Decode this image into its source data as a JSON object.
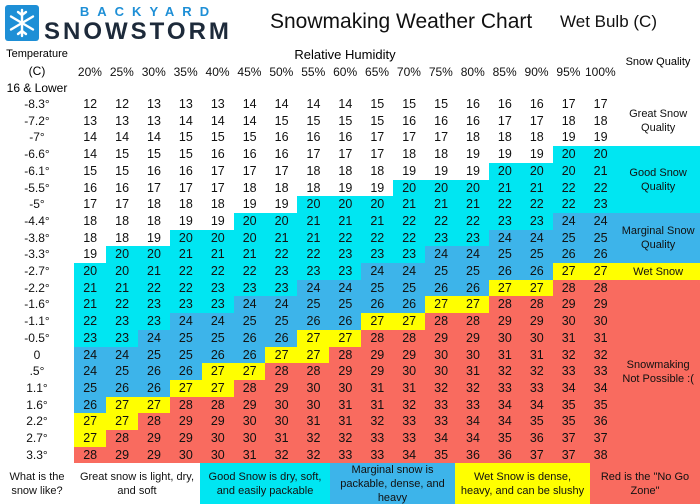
{
  "header": {
    "brand_top": "BACKYARD",
    "brand_bottom": "SNOWSTORM",
    "title": "Snowmaking Weather Chart",
    "unit_label": "Wet Bulb (C)"
  },
  "table": {
    "temperature_label": "Temperature",
    "temperature_unit": "(C)",
    "column_group_label": "Relative Humidity",
    "quality_label": "Snow Quality",
    "first_row_label": "16 & Lower",
    "columns": [
      "20%",
      "25%",
      "30%",
      "35%",
      "40%",
      "45%",
      "50%",
      "55%",
      "60%",
      "65%",
      "70%",
      "75%",
      "80%",
      "85%",
      "90%",
      "95%",
      "100%"
    ],
    "rows": [
      {
        "temperature": "-8.3°",
        "values": [
          12,
          12,
          13,
          13,
          13,
          14,
          14,
          14,
          14,
          15,
          15,
          15,
          16,
          16,
          16,
          17,
          17
        ]
      },
      {
        "temperature": "-7.2°",
        "values": [
          13,
          13,
          13,
          14,
          14,
          14,
          15,
          15,
          15,
          15,
          16,
          16,
          16,
          17,
          17,
          18,
          18
        ]
      },
      {
        "temperature": "-7°",
        "values": [
          14,
          14,
          14,
          15,
          15,
          15,
          16,
          16,
          16,
          17,
          17,
          17,
          18,
          18,
          18,
          19,
          19
        ]
      },
      {
        "temperature": "-6.6°",
        "values": [
          14,
          15,
          15,
          15,
          16,
          16,
          16,
          17,
          17,
          17,
          18,
          18,
          19,
          19,
          19,
          20,
          20
        ]
      },
      {
        "temperature": "-6.1°",
        "values": [
          15,
          15,
          16,
          16,
          17,
          17,
          17,
          18,
          18,
          18,
          19,
          19,
          19,
          20,
          20,
          20,
          21
        ]
      },
      {
        "temperature": "-5.5°",
        "values": [
          16,
          16,
          17,
          17,
          17,
          18,
          18,
          18,
          19,
          19,
          20,
          20,
          20,
          21,
          21,
          22,
          22
        ]
      },
      {
        "temperature": "-5°",
        "values": [
          17,
          17,
          18,
          18,
          18,
          19,
          19,
          20,
          20,
          20,
          21,
          21,
          21,
          22,
          22,
          22,
          23
        ]
      },
      {
        "temperature": "-4.4°",
        "values": [
          18,
          18,
          18,
          19,
          19,
          20,
          20,
          21,
          21,
          21,
          22,
          22,
          22,
          23,
          23,
          24,
          24
        ]
      },
      {
        "temperature": "-3.8°",
        "values": [
          18,
          18,
          19,
          20,
          20,
          20,
          21,
          21,
          22,
          22,
          22,
          23,
          23,
          24,
          24,
          25,
          25
        ]
      },
      {
        "temperature": "-3.3°",
        "values": [
          19,
          20,
          20,
          21,
          21,
          21,
          22,
          22,
          23,
          23,
          23,
          24,
          24,
          25,
          25,
          26,
          26
        ]
      },
      {
        "temperature": "-2.7°",
        "values": [
          20,
          20,
          21,
          22,
          22,
          22,
          23,
          23,
          23,
          24,
          24,
          25,
          25,
          26,
          26,
          27,
          27
        ]
      },
      {
        "temperature": "-2.2°",
        "values": [
          21,
          21,
          22,
          22,
          23,
          23,
          23,
          24,
          24,
          25,
          25,
          26,
          26,
          27,
          27,
          28,
          28
        ]
      },
      {
        "temperature": "-1.6°",
        "values": [
          21,
          22,
          23,
          23,
          23,
          24,
          24,
          25,
          25,
          26,
          26,
          27,
          27,
          28,
          28,
          29,
          29
        ]
      },
      {
        "temperature": "-1.1°",
        "values": [
          22,
          23,
          23,
          24,
          24,
          25,
          25,
          26,
          26,
          27,
          27,
          28,
          28,
          29,
          29,
          30,
          30
        ]
      },
      {
        "temperature": "-0.5°",
        "values": [
          23,
          23,
          24,
          25,
          25,
          26,
          26,
          27,
          27,
          28,
          28,
          29,
          29,
          30,
          30,
          31,
          31
        ]
      },
      {
        "temperature": "0",
        "values": [
          24,
          24,
          25,
          25,
          26,
          26,
          27,
          27,
          28,
          29,
          29,
          30,
          30,
          31,
          31,
          32,
          32
        ]
      },
      {
        "temperature": ".5°",
        "values": [
          24,
          25,
          26,
          26,
          27,
          27,
          28,
          28,
          29,
          29,
          30,
          30,
          31,
          32,
          32,
          33,
          33
        ]
      },
      {
        "temperature": "1.1°",
        "values": [
          25,
          26,
          26,
          27,
          27,
          28,
          29,
          30,
          30,
          31,
          31,
          32,
          32,
          33,
          33,
          34,
          34
        ]
      },
      {
        "temperature": "1.6°",
        "values": [
          26,
          27,
          27,
          28,
          28,
          29,
          30,
          30,
          31,
          31,
          32,
          33,
          33,
          34,
          34,
          35,
          35
        ]
      },
      {
        "temperature": "2.2°",
        "values": [
          27,
          27,
          28,
          29,
          29,
          30,
          30,
          31,
          31,
          32,
          33,
          33,
          34,
          34,
          35,
          35,
          36
        ]
      },
      {
        "temperature": "2.7°",
        "values": [
          27,
          28,
          29,
          29,
          30,
          30,
          31,
          32,
          32,
          33,
          33,
          34,
          34,
          35,
          36,
          37,
          37
        ]
      },
      {
        "temperature": "3.3°",
        "values": [
          28,
          29,
          29,
          30,
          30,
          31,
          32,
          32,
          33,
          33,
          34,
          35,
          36,
          36,
          37,
          37,
          38
        ]
      }
    ]
  },
  "zones": [
    {
      "name": "Great Snow Quality",
      "description": "Great snow is light, dry, and soft",
      "color": "#ffffff",
      "upper": 19
    },
    {
      "name": "Good Snow Quality",
      "description": "Good Snow is dry, soft, and easily packable",
      "color": "#00e6f2",
      "upper": 23
    },
    {
      "name": "Marginal Snow Quality",
      "description": "Marginal snow is packable, dense, and heavy",
      "color": "#3db4ea",
      "upper": 26
    },
    {
      "name": "Wet Snow",
      "description": "Wet Snow is dense, heavy, and can be slushy",
      "color": "#ffff00",
      "upper": 27
    },
    {
      "name": "Snowmaking Not Possible :(",
      "description": "Red is the \"No Go Zone\"",
      "color": "#f96b5f"
    }
  ],
  "footer_label": "What is the snow like?"
}
